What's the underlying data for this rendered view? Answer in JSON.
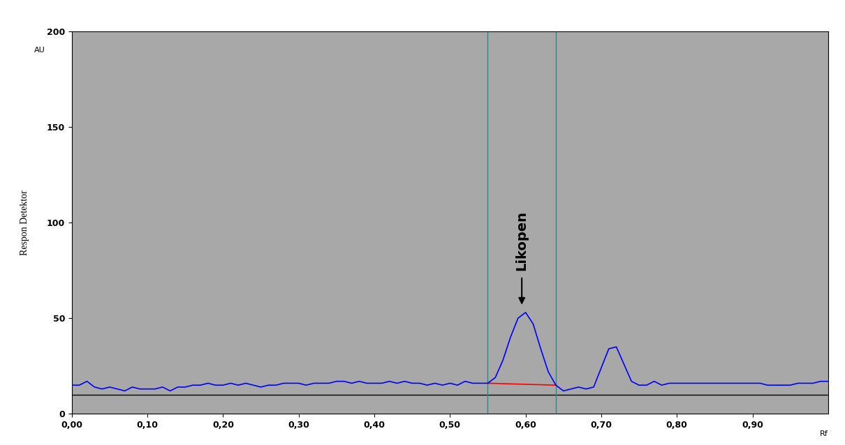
{
  "chart_data": {
    "type": "line",
    "y_label": "Respon Detektor",
    "y_unit": "AU",
    "x_label": "Rf",
    "color": "#0000ff",
    "x": [
      0.0,
      0.01,
      0.02,
      0.03,
      0.04,
      0.05,
      0.06,
      0.07,
      0.08,
      0.09,
      0.1,
      0.11,
      0.12,
      0.13,
      0.14,
      0.15,
      0.16,
      0.17,
      0.18,
      0.19,
      0.2,
      0.21,
      0.22,
      0.23,
      0.24,
      0.25,
      0.26,
      0.27,
      0.28,
      0.29,
      0.3,
      0.31,
      0.32,
      0.33,
      0.34,
      0.35,
      0.36,
      0.37,
      0.38,
      0.39,
      0.4,
      0.41,
      0.42,
      0.43,
      0.44,
      0.45,
      0.46,
      0.47,
      0.48,
      0.49,
      0.5,
      0.51,
      0.52,
      0.53,
      0.54,
      0.55,
      0.56,
      0.57,
      0.58,
      0.59,
      0.6,
      0.61,
      0.62,
      0.63,
      0.64,
      0.65,
      0.66,
      0.67,
      0.68,
      0.69,
      0.7,
      0.71,
      0.72,
      0.73,
      0.74,
      0.75,
      0.76,
      0.77,
      0.78,
      0.79,
      0.8,
      0.81,
      0.82,
      0.83,
      0.84,
      0.85,
      0.86,
      0.87,
      0.88,
      0.89,
      0.9,
      0.91,
      0.92,
      0.93,
      0.94,
      0.95,
      0.96,
      0.97,
      0.98,
      0.99,
      1.0
    ],
    "values": [
      15,
      15,
      17,
      14,
      13,
      14,
      13,
      12,
      14,
      13,
      13,
      13,
      14,
      12,
      14,
      14,
      15,
      15,
      16,
      15,
      15,
      16,
      15,
      16,
      15,
      14,
      15,
      15,
      16,
      16,
      16,
      15,
      16,
      16,
      16,
      17,
      17,
      16,
      17,
      16,
      16,
      16,
      17,
      16,
      17,
      16,
      16,
      15,
      16,
      15,
      16,
      15,
      17,
      16,
      16,
      16,
      19,
      28,
      40,
      50,
      53,
      47,
      34,
      22,
      15,
      12,
      13,
      14,
      13,
      14,
      24,
      34,
      35,
      26,
      17,
      15,
      15,
      17,
      15,
      16,
      16,
      16,
      16,
      16,
      16,
      16,
      16,
      16,
      16,
      16,
      16,
      16,
      15,
      15,
      15,
      15,
      16,
      16,
      16,
      17,
      17
    ],
    "xlim": [
      0,
      1.0
    ],
    "ylim": [
      0,
      200
    ],
    "xticks": [
      {
        "value": 0.0,
        "label": "0,00"
      },
      {
        "value": 0.1,
        "label": "0,10"
      },
      {
        "value": 0.2,
        "label": "0,20"
      },
      {
        "value": 0.3,
        "label": "0,30"
      },
      {
        "value": 0.4,
        "label": "0,40"
      },
      {
        "value": 0.5,
        "label": "0,50"
      },
      {
        "value": 0.6,
        "label": "0,60"
      },
      {
        "value": 0.7,
        "label": "0,70"
      },
      {
        "value": 0.8,
        "label": "0,80"
      },
      {
        "value": 0.9,
        "label": "0,90"
      }
    ],
    "yticks": [
      0,
      50,
      100,
      150,
      200
    ],
    "integration_window": [
      0.55,
      0.64
    ],
    "baseline_segment": {
      "x": [
        0.55,
        0.64
      ],
      "values": [
        16,
        15
      ]
    },
    "reference_line": 10,
    "annotations": [
      {
        "text": "Likopen",
        "x": 0.595,
        "y": 57,
        "text_y": 75
      }
    ],
    "grid": false
  }
}
